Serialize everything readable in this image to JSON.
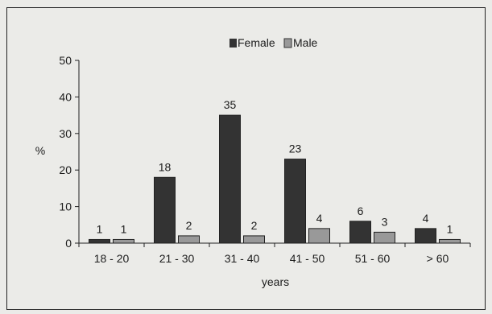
{
  "chart_data": {
    "type": "bar",
    "categories": [
      "18 - 20",
      "21 - 30",
      "31 - 40",
      "41 - 50",
      "51 - 60",
      "> 60"
    ],
    "series": [
      {
        "name": "Female",
        "values": [
          1,
          18,
          35,
          23,
          6,
          4
        ],
        "color": "#333333"
      },
      {
        "name": "Male",
        "values": [
          1,
          2,
          2,
          4,
          3,
          1
        ],
        "color": "#999999"
      }
    ],
    "xlabel": "years",
    "ylabel": "%",
    "ylim": [
      0,
      50
    ],
    "yticks": [
      0,
      10,
      20,
      30,
      40,
      50
    ],
    "grid": false,
    "legend": "top-center",
    "data_labels": true
  }
}
